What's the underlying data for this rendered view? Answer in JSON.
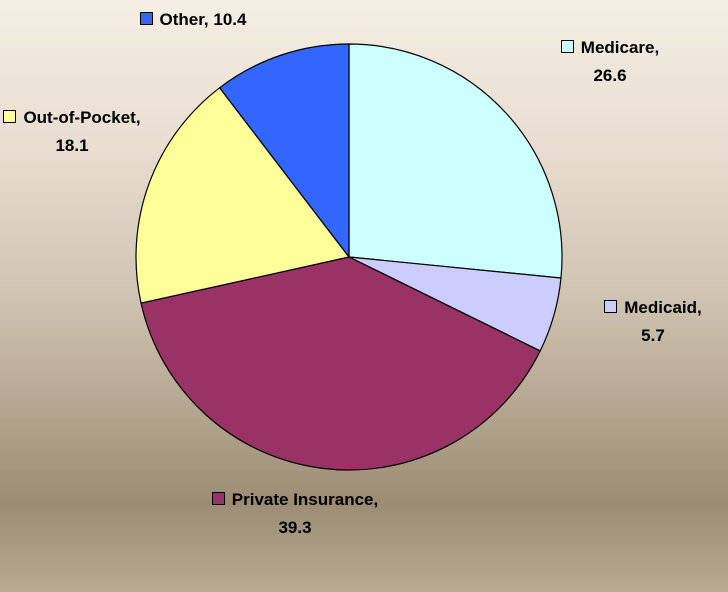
{
  "chart_data": {
    "type": "pie",
    "categories": [
      "Medicare,",
      "Medicaid,",
      "Private Insurance,",
      "Out-of-Pocket,",
      "Other,"
    ],
    "values": [
      26.6,
      5.7,
      39.3,
      18.1,
      10.4
    ],
    "colors": [
      "#ccffff",
      "#ccccff",
      "#993366",
      "#ffff99",
      "#3366ff"
    ]
  }
}
